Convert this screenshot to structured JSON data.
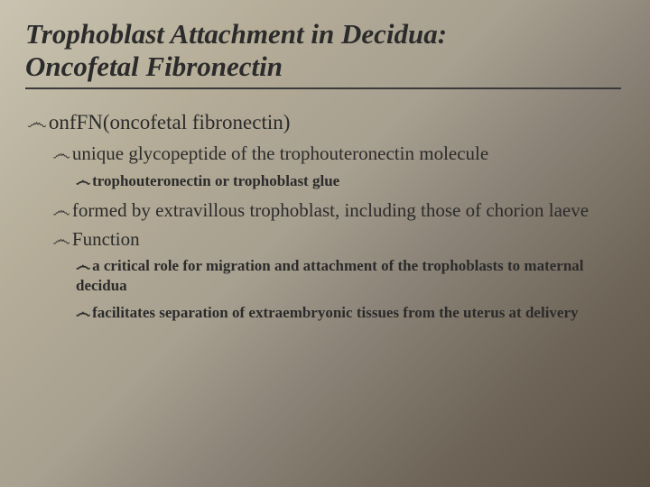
{
  "colors": {
    "bg_start": "#c9c3b0",
    "bg_end": "#5a5144",
    "text": "#2b2b2b",
    "underline": "#3a3a3a"
  },
  "title": {
    "line1": "Trophoblast Attachment in Decidua:",
    "line2": "Oncofetal Fibronectin",
    "fontsize": 31,
    "font_style": "italic bold"
  },
  "bullet_glyph": "෴",
  "content": {
    "lvl1_1": "onfFN(oncofetal fibronectin)",
    "lvl2_1": "unique glycopeptide of the trophouteronectin molecule",
    "lvl3_1": "trophouteronectin or trophoblast glue",
    "lvl2_2": "formed by extravillous trophoblast, including those of chorion laeve",
    "lvl2_3": "Function",
    "lvl3_2": "a critical role for migration and attachment of the trophoblasts to maternal decidua",
    "lvl3_3": "facilitates separation of extraembryonic tissues from the uterus at delivery"
  },
  "font_sizes": {
    "lvl1": 23,
    "lvl2": 21,
    "lvl3": 17
  }
}
